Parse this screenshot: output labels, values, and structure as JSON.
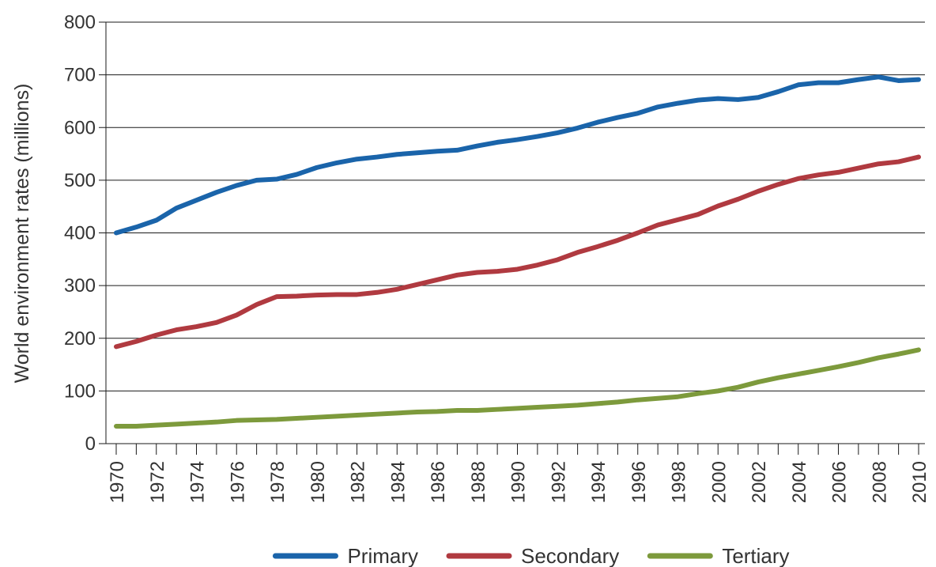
{
  "chart_data": {
    "type": "line",
    "title": "",
    "xlabel": "",
    "ylabel": "World environment rates (millions)",
    "ylim": [
      0,
      800
    ],
    "yticks": [
      0,
      100,
      200,
      300,
      400,
      500,
      600,
      700,
      800
    ],
    "ytick_labels": [
      "0",
      "100",
      "200",
      "300",
      "400",
      "500",
      "600",
      "700",
      "800"
    ],
    "xlim": [
      1970,
      2010
    ],
    "x": [
      1970,
      1971,
      1972,
      1973,
      1974,
      1975,
      1976,
      1977,
      1978,
      1979,
      1980,
      1981,
      1982,
      1983,
      1984,
      1985,
      1986,
      1987,
      1988,
      1989,
      1990,
      1991,
      1992,
      1993,
      1994,
      1995,
      1996,
      1997,
      1998,
      1999,
      2000,
      2001,
      2002,
      2003,
      2004,
      2005,
      2006,
      2007,
      2008,
      2009,
      2010
    ],
    "xtick_labels": [
      "1970",
      "1972",
      "1974",
      "1976",
      "1978",
      "1980",
      "1982",
      "1984",
      "1986",
      "1988",
      "1990",
      "1992",
      "1994",
      "1996",
      "1998",
      "2000",
      "2002",
      "2004",
      "2006",
      "2008",
      "2010"
    ],
    "grid": "horizontal",
    "legend_position": "bottom",
    "series": [
      {
        "name": "Primary",
        "color": "#1a64aa",
        "values": [
          400,
          411,
          424,
          447,
          462,
          477,
          490,
          500,
          502,
          511,
          524,
          533,
          540,
          544,
          549,
          552,
          555,
          557,
          565,
          572,
          577,
          583,
          590,
          599,
          610,
          619,
          627,
          639,
          646,
          652,
          655,
          653,
          657,
          668,
          681,
          685,
          685,
          691,
          696,
          689,
          691
        ]
      },
      {
        "name": "Secondary",
        "color": "#b03a40",
        "values": [
          184,
          194,
          206,
          216,
          222,
          230,
          244,
          264,
          279,
          280,
          282,
          283,
          283,
          287,
          293,
          302,
          311,
          320,
          325,
          327,
          331,
          339,
          349,
          363,
          374,
          386,
          400,
          415,
          425,
          435,
          451,
          464,
          479,
          492,
          503,
          510,
          515,
          523,
          531,
          535,
          544
        ]
      },
      {
        "name": "Tertiary",
        "color": "#7d9a3c",
        "values": [
          33,
          33,
          35,
          37,
          39,
          41,
          44,
          45,
          46,
          48,
          50,
          52,
          54,
          56,
          58,
          60,
          61,
          63,
          63,
          65,
          67,
          69,
          71,
          73,
          76,
          79,
          83,
          86,
          89,
          95,
          100,
          107,
          117,
          125,
          132,
          139,
          146,
          154,
          163,
          170,
          178
        ]
      }
    ]
  }
}
